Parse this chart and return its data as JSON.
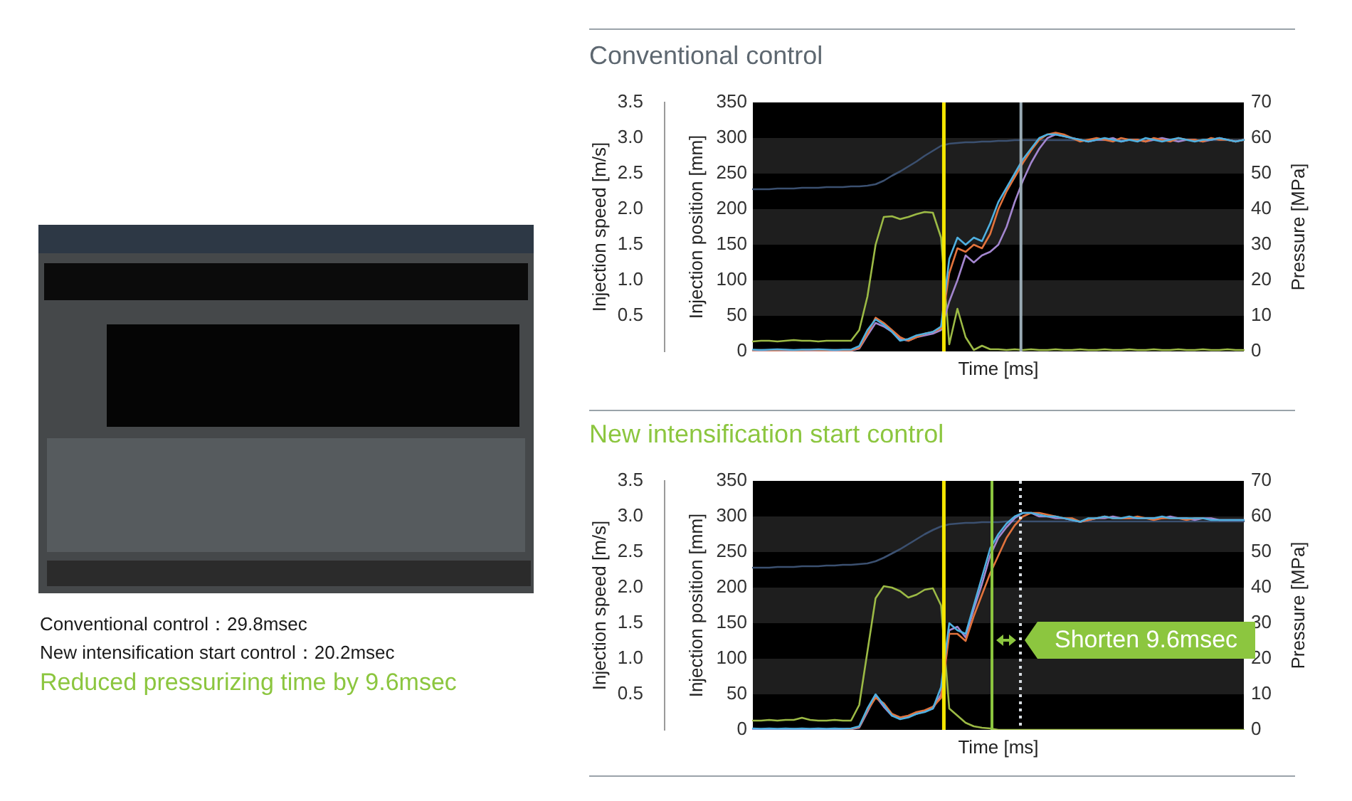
{
  "chart_data": [
    {
      "type": "other",
      "annotations": [
        "Conventional control：29.8msec",
        "New intensification start control：20.2msec",
        "Reduced pressurizing time by 9.6msec"
      ]
    },
    {
      "type": "line",
      "title": "Conventional control",
      "xlabel": "Time [ms]",
      "ylabel": "Injection position [mm]",
      "y2label": "Pressure [MPa]",
      "y3label": "Injection speed [m/s]",
      "categories": [
        null,
        null,
        null,
        null,
        null,
        null,
        null,
        null,
        null,
        null,
        null,
        null,
        null,
        null,
        null,
        null,
        null,
        null,
        null,
        null,
        null,
        null,
        null,
        null,
        null,
        null,
        null,
        null,
        null,
        null,
        null,
        null,
        null,
        null,
        null,
        null,
        null,
        null,
        null,
        null,
        null,
        null,
        null,
        null,
        null,
        null,
        null,
        null,
        null,
        null,
        null,
        null,
        null,
        null,
        null,
        null,
        null,
        null,
        null,
        null,
        null
      ],
      "ylim": [
        0,
        350
      ],
      "yticks": [
        0,
        50,
        100,
        150,
        200,
        250,
        300,
        350
      ],
      "y2lim": [
        0,
        70
      ],
      "y2ticks": [
        0,
        10,
        20,
        30,
        40,
        50,
        60,
        70
      ],
      "y3lim": [
        0,
        3.5
      ],
      "y3ticks": [
        0.5,
        {
          "value": 1,
          "label": "1.0"
        },
        1.5,
        {
          "value": 2,
          "label": "2.0"
        },
        2.5,
        {
          "value": 3,
          "label": "3.0"
        },
        3.5
      ],
      "tick_labels": "y",
      "series": [
        {
          "color": "#3b5070",
          "values": [
            228,
            228,
            228,
            229,
            229,
            229,
            230,
            230,
            230,
            231,
            231,
            231,
            232,
            232,
            233,
            235,
            240,
            247,
            253,
            260,
            267,
            275,
            282,
            289,
            292,
            293,
            294,
            294,
            295,
            295,
            296,
            296,
            297,
            297,
            297,
            297,
            297,
            297,
            297,
            297,
            297,
            297,
            297,
            297,
            297,
            297,
            297,
            297,
            297,
            297,
            297,
            297,
            297,
            297,
            297,
            297,
            297,
            297,
            297,
            297,
            297
          ]
        },
        {
          "color": "#9cba45",
          "axis": "y3",
          "values": [
            0.14,
            0.15,
            0.15,
            0.14,
            0.15,
            0.16,
            0.15,
            0.15,
            0.14,
            0.15,
            0.15,
            0.15,
            0.15,
            0.3,
            0.77,
            1.5,
            1.89,
            1.9,
            1.86,
            1.89,
            1.93,
            1.96,
            1.95,
            1.6,
            0.1,
            0.6,
            0.2,
            0.02,
            0.08,
            0.03,
            0.03,
            0.02,
            0.03,
            0.02,
            0.03,
            0.02,
            0.02,
            0.03,
            0.02,
            0.02,
            0.03,
            0.02,
            0.02,
            0.03,
            0.02,
            0.02,
            0.03,
            0.02,
            0.02,
            0.03,
            0.02,
            0.02,
            0.03,
            0.02,
            0.02,
            0.03,
            0.02,
            0.02,
            0.03,
            0.02,
            0.02
          ]
        },
        {
          "color": "#a386cf",
          "axis": "y2",
          "values": [
            0.2,
            0.3,
            0.2,
            0.2,
            0.3,
            0.2,
            0.2,
            0.3,
            0.2,
            0.2,
            0.3,
            0.2,
            0.2,
            0.8,
            4.5,
            8,
            7,
            5.5,
            3.5,
            3,
            4,
            4.5,
            5,
            6,
            14,
            20,
            27,
            25,
            27,
            28,
            30,
            35,
            42,
            48,
            53,
            57,
            60,
            61,
            60.5,
            60,
            59.5,
            59,
            59.5,
            59.5,
            60,
            59,
            59.5,
            59.5,
            59,
            59.5,
            60,
            59.5,
            59,
            59.5,
            59.5,
            59,
            59.5,
            60,
            59.5,
            59,
            59.5
          ]
        },
        {
          "color": "#e2733c",
          "axis": "y2",
          "values": [
            0.3,
            0.4,
            0.3,
            0.3,
            0.4,
            0.3,
            0.3,
            0.4,
            0.3,
            0.3,
            0.4,
            0.3,
            0.3,
            1,
            5,
            9.5,
            8,
            6,
            4,
            3,
            4,
            5,
            5.5,
            6.5,
            22,
            29,
            28,
            30,
            29,
            33,
            40,
            45,
            49,
            53,
            56.5,
            59.5,
            61,
            61.5,
            61,
            60,
            59,
            59.5,
            60,
            59.5,
            59,
            60,
            59.5,
            59.5,
            59,
            60,
            59.5,
            59,
            60,
            59.5,
            59.5,
            59,
            60,
            59.5,
            59.5,
            59,
            59.5
          ]
        },
        {
          "color": "#4fb0e0",
          "axis": "y2",
          "values": [
            0.5,
            0.4,
            0.5,
            0.6,
            0.5,
            0.4,
            0.5,
            0.5,
            0.6,
            0.5,
            0.4,
            0.5,
            0.5,
            1.5,
            6,
            9,
            7.5,
            5.5,
            3,
            3.5,
            4.5,
            5,
            5.5,
            7,
            26,
            32,
            30,
            32,
            31,
            36,
            42,
            46,
            50,
            54,
            57,
            60,
            61,
            61,
            60.5,
            60,
            59.5,
            59,
            59.5,
            60,
            59.5,
            59,
            59.5,
            59,
            60,
            59.5,
            59,
            59.5,
            60,
            59.5,
            59,
            59.5,
            59.5,
            60,
            59.5,
            59,
            59.5
          ]
        }
      ]
    },
    {
      "type": "line",
      "title": "New intensification start control",
      "xlabel": "Time [ms]",
      "ylabel": "Injection position [mm]",
      "y2label": "Pressure [MPa]",
      "y3label": "Injection speed [m/s]",
      "categories": [
        null,
        null,
        null,
        null,
        null,
        null,
        null,
        null,
        null,
        null,
        null,
        null,
        null,
        null,
        null,
        null,
        null,
        null,
        null,
        null,
        null,
        null,
        null,
        null,
        null,
        null,
        null,
        null,
        null,
        null,
        null,
        null,
        null,
        null,
        null,
        null,
        null,
        null,
        null,
        null,
        null,
        null,
        null,
        null,
        null,
        null,
        null,
        null,
        null,
        null,
        null,
        null,
        null,
        null,
        null,
        null,
        null,
        null,
        null,
        null,
        null
      ],
      "ylim": [
        0,
        350
      ],
      "yticks": [
        0,
        50,
        100,
        150,
        200,
        250,
        300,
        350
      ],
      "y2lim": [
        0,
        70
      ],
      "y2ticks": [
        0,
        10,
        20,
        30,
        40,
        50,
        60,
        70
      ],
      "y3lim": [
        0,
        3.5
      ],
      "y3ticks": [
        0.5,
        {
          "value": 1,
          "label": "1.0"
        },
        1.5,
        {
          "value": 2,
          "label": "2.0"
        },
        2.5,
        {
          "value": 3,
          "label": "3.0"
        },
        3.5
      ],
      "tick_labels": "y",
      "series": [
        {
          "color": "#3b5070",
          "values": [
            228,
            228,
            228,
            229,
            229,
            229,
            230,
            230,
            230,
            231,
            231,
            232,
            232,
            233,
            234,
            237,
            242,
            248,
            254,
            261,
            268,
            275,
            281,
            286,
            289,
            290,
            291,
            291,
            292,
            292,
            292,
            293,
            293,
            293,
            293,
            293,
            293,
            293,
            293,
            293,
            293,
            293,
            293,
            293,
            293,
            293,
            293,
            293,
            293,
            293,
            293,
            293,
            293,
            293,
            293,
            293,
            293,
            293,
            293,
            293,
            293
          ]
        },
        {
          "color": "#9cba45",
          "axis": "y3",
          "values": [
            0.13,
            0.13,
            0.14,
            0.13,
            0.14,
            0.14,
            0.17,
            0.14,
            0.13,
            0.13,
            0.14,
            0.13,
            0.13,
            0.35,
            1.1,
            1.85,
            2.02,
            2,
            1.95,
            1.86,
            1.9,
            1.97,
            1.99,
            1.75,
            0.3,
            0.2,
            0.1,
            0.05,
            0.03,
            0.02,
            0,
            0,
            0,
            0,
            0,
            0,
            0,
            0,
            0,
            0,
            0,
            0,
            0,
            0,
            0,
            0,
            0,
            0,
            0,
            0,
            0,
            0,
            0,
            0,
            0,
            0,
            0,
            0,
            0,
            0,
            0
          ]
        },
        {
          "color": "#a386cf",
          "axis": "y2",
          "values": [
            0.2,
            0.2,
            0.3,
            0.2,
            0.2,
            0.3,
            0.2,
            0.2,
            0.3,
            0.2,
            0.2,
            0.3,
            0.2,
            0.6,
            5,
            9.5,
            6.5,
            4,
            3.5,
            3.8,
            4.5,
            5.2,
            6,
            10,
            28,
            29,
            26,
            34,
            41,
            49,
            54,
            57,
            59.5,
            61,
            61,
            60,
            60,
            59.5,
            59.5,
            59,
            58.5,
            59,
            59.5,
            59.5,
            60,
            59.5,
            59.5,
            59.5,
            59.5,
            59.5,
            59.5,
            60,
            59.5,
            59.5,
            59,
            59.5,
            59.5,
            59,
            59,
            59,
            59
          ]
        },
        {
          "color": "#e2733c",
          "axis": "y2",
          "values": [
            null,
            null,
            null,
            null,
            null,
            null,
            null,
            null,
            null,
            null,
            null,
            0.2,
            0.3,
            0.8,
            5.5,
            9,
            7.5,
            4.5,
            3.5,
            4,
            5,
            5.5,
            6.5,
            9,
            27,
            27,
            25,
            32,
            38,
            44,
            49,
            54,
            57.5,
            60,
            61,
            61,
            60.5,
            60,
            59.5,
            59.5,
            58.5,
            59,
            59.5,
            60,
            59.5,
            59.5,
            59.5,
            60,
            59.5,
            59,
            59.5,
            59.5,
            59.5,
            59,
            59.5,
            59.5,
            null,
            null,
            null,
            null,
            null
          ]
        },
        {
          "color": "#4fb0e0",
          "axis": "y2",
          "values": [
            0.4,
            0.3,
            0.4,
            0.3,
            0.4,
            0.3,
            0.4,
            0.3,
            0.4,
            0.3,
            0.4,
            0.3,
            0.4,
            1,
            6,
            10,
            7,
            4,
            3,
            3.5,
            4.5,
            5,
            6,
            12,
            30,
            28,
            27,
            35,
            43,
            51,
            55,
            58,
            60,
            61,
            61,
            60.5,
            60,
            60,
            59.5,
            59,
            58.5,
            59.5,
            59.5,
            60,
            59.5,
            59.5,
            60,
            59.5,
            59.5,
            59.5,
            60,
            59.5,
            59.5,
            59.5,
            59.5,
            59.5,
            59,
            59,
            59,
            59,
            59
          ]
        }
      ],
      "annotations": [
        "Shorten 9.6msec"
      ]
    }
  ]
}
